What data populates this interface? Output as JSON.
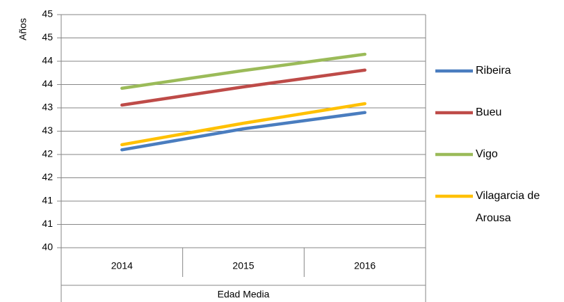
{
  "chart_data": {
    "type": "line",
    "y_label": "Años",
    "x_label": "Edad Media",
    "categories": [
      "2014",
      "2015",
      "2016"
    ],
    "series": [
      {
        "name": "Ribeira",
        "color": "#4a7dbf",
        "values": [
          42.1,
          42.55,
          42.9
        ]
      },
      {
        "name": "Bueu",
        "color": "#be4b48",
        "values": [
          43.06,
          43.45,
          43.81
        ]
      },
      {
        "name": "Vigo",
        "color": "#9bbb59",
        "values": [
          43.42,
          43.8,
          44.15
        ]
      },
      {
        "name": "Vilagarcia de Arousa",
        "color": "#ffc000",
        "values": [
          42.21,
          42.67,
          43.09
        ]
      }
    ],
    "ylim": [
      40,
      45
    ],
    "yticks": [
      40,
      {
        "value": 40.5,
        "label": "41"
      },
      41,
      {
        "value": 41.5,
        "label": "42"
      },
      42,
      {
        "value": 42.5,
        "label": "43"
      },
      43,
      {
        "value": 43.5,
        "label": "44"
      },
      44,
      {
        "value": 44.5,
        "label": "45"
      },
      45
    ],
    "grid": true,
    "legend": "right"
  }
}
